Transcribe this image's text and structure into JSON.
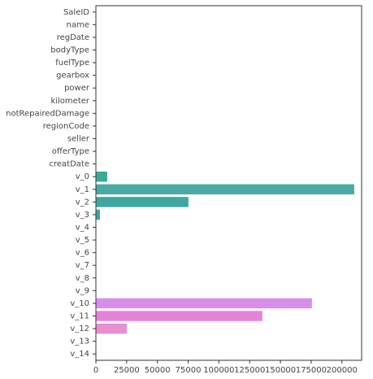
{
  "chart_data": {
    "type": "barh",
    "categories": [
      "SaleID",
      "name",
      "regDate",
      "bodyType",
      "fuelType",
      "gearbox",
      "power",
      "kilometer",
      "notRepairedDamage",
      "regionCode",
      "seller",
      "offerType",
      "creatDate",
      "v_0",
      "v_1",
      "v_2",
      "v_3",
      "v_4",
      "v_5",
      "v_6",
      "v_7",
      "v_8",
      "v_9",
      "v_10",
      "v_11",
      "v_12",
      "v_13",
      "v_14"
    ],
    "values": [
      0,
      0,
      0,
      0,
      0,
      0,
      0,
      0,
      0,
      0,
      0,
      0,
      0,
      9200,
      210000,
      75200,
      3300,
      0,
      0,
      0,
      0,
      0,
      0,
      175600,
      135300,
      25100,
      0,
      0
    ],
    "colors": [
      "#f77189",
      "#f67a4f",
      "#dc8932",
      "#c59434",
      "#b39b32",
      "#a29f31",
      "#8fa531",
      "#6fab31",
      "#32b146",
      "#33b07a",
      "#34ae90",
      "#35ad9c",
      "#36aba7",
      "#3aa997",
      "#4aaaa5",
      "#3da7a0",
      "#3ea5a0",
      "#40a3bf",
      "#49a0cf",
      "#6e9bf4",
      "#8f97f4",
      "#a990f4",
      "#c286f4",
      "#d68ee9",
      "#e583db",
      "#e88fcf",
      "#f565b8",
      "#f66da0"
    ],
    "xlim": [
      0,
      216000
    ],
    "xticks": [
      0,
      25000,
      50000,
      75000,
      100000,
      125000,
      150000,
      175000,
      200000
    ]
  }
}
